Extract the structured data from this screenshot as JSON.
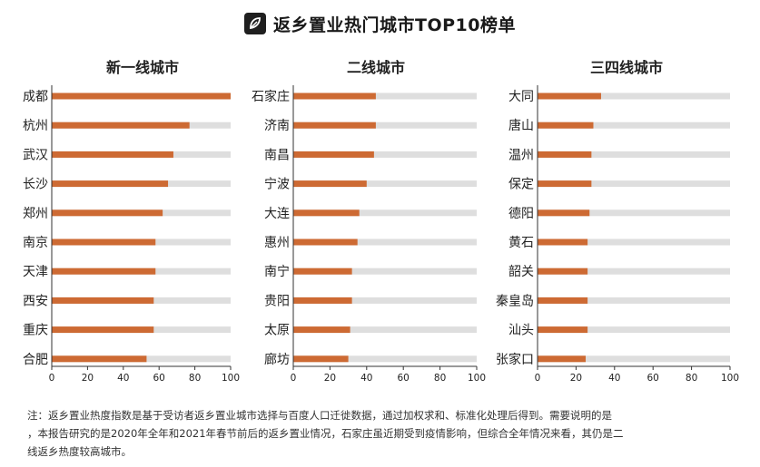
{
  "title": "返乡置业热门城市TOP10榜单",
  "colors": {
    "bar": "#CD6A33",
    "track": "#DEDEDE",
    "axis": "#333333",
    "text": "#222222"
  },
  "chart_data": [
    {
      "type": "bar",
      "orientation": "horizontal",
      "title": "新一线城市",
      "categories": [
        "成都",
        "杭州",
        "武汉",
        "长沙",
        "郑州",
        "南京",
        "天津",
        "西安",
        "重庆",
        "合肥"
      ],
      "values": [
        100,
        77,
        68,
        65,
        62,
        58,
        58,
        57,
        57,
        53
      ],
      "xlim": [
        0,
        100
      ],
      "xticks": [
        0,
        20,
        40,
        60,
        80,
        100
      ]
    },
    {
      "type": "bar",
      "orientation": "horizontal",
      "title": "二线城市",
      "categories": [
        "石家庄",
        "济南",
        "南昌",
        "宁波",
        "大连",
        "惠州",
        "南宁",
        "贵阳",
        "太原",
        "廊坊"
      ],
      "values": [
        45,
        45,
        44,
        40,
        36,
        35,
        32,
        32,
        31,
        30
      ],
      "xlim": [
        0,
        100
      ],
      "xticks": [
        0,
        20,
        40,
        60,
        80,
        100
      ]
    },
    {
      "type": "bar",
      "orientation": "horizontal",
      "title": "三四线城市",
      "categories": [
        "大同",
        "唐山",
        "温州",
        "保定",
        "德阳",
        "黄石",
        "韶关",
        "秦皇岛",
        "汕头",
        "张家口"
      ],
      "values": [
        33,
        29,
        28,
        28,
        27,
        26,
        26,
        26,
        26,
        25
      ],
      "xlim": [
        0,
        100
      ],
      "xticks": [
        0,
        20,
        40,
        60,
        80,
        100
      ]
    }
  ],
  "note": {
    "line1": "注：返乡置业热度指数是基于受访者返乡置业城市选择与百度人口迁徙数据，通过加权求和、标准化处理后得到。需要说明的是",
    "line2": "，本报告研究的是2020年全年和2021年春节前后的返乡置业情况，石家庄虽近期受到疫情影响，但综合全年情况来看，其仍是二",
    "line3": "线返乡热度较高城市。"
  }
}
